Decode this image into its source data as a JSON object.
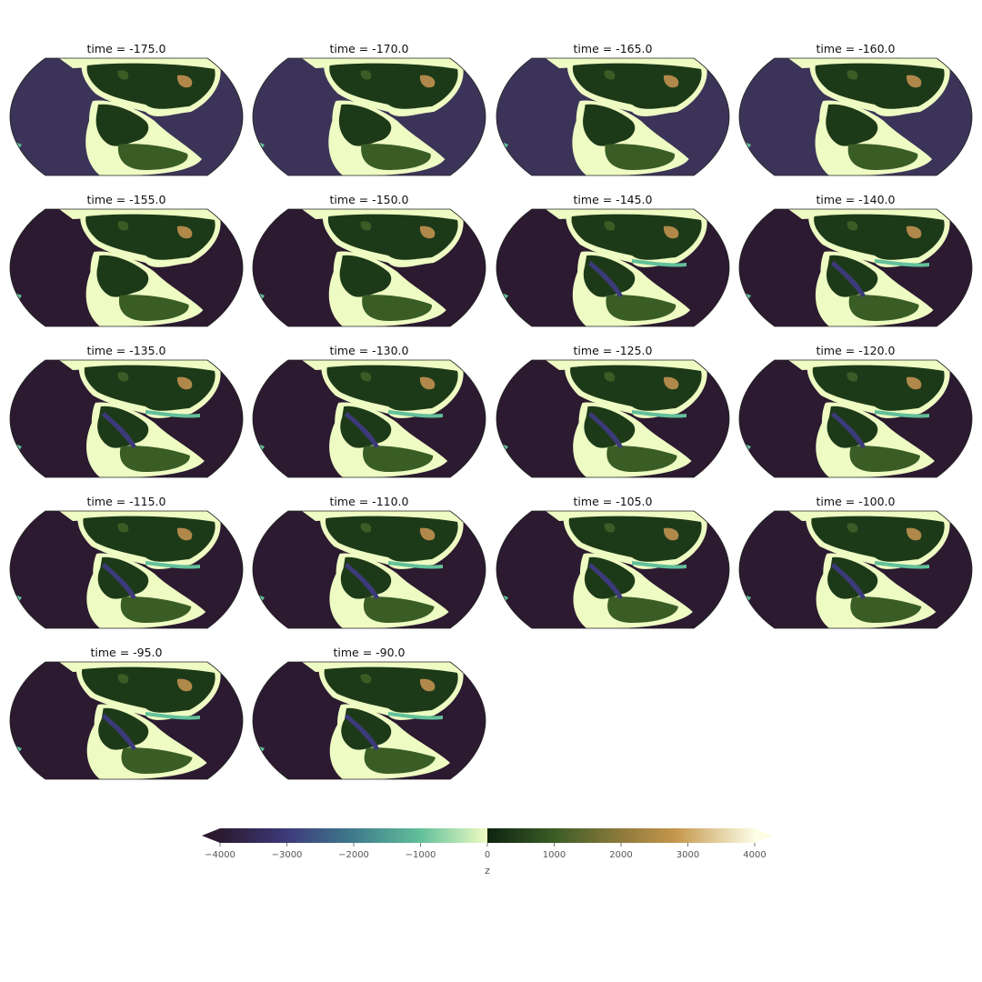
{
  "chart_data": {
    "type": "map-small-multiples",
    "projection": "Robinson",
    "panel_title_prefix": "time = ",
    "panels": [
      {
        "time": -175.0,
        "title": "time = -175.0"
      },
      {
        "time": -170.0,
        "title": "time = -170.0"
      },
      {
        "time": -165.0,
        "title": "time = -165.0"
      },
      {
        "time": -160.0,
        "title": "time = -160.0"
      },
      {
        "time": -155.0,
        "title": "time = -155.0"
      },
      {
        "time": -150.0,
        "title": "time = -150.0"
      },
      {
        "time": -145.0,
        "title": "time = -145.0"
      },
      {
        "time": -140.0,
        "title": "time = -140.0"
      },
      {
        "time": -135.0,
        "title": "time = -135.0"
      },
      {
        "time": -130.0,
        "title": "time = -130.0"
      },
      {
        "time": -125.0,
        "title": "time = -125.0"
      },
      {
        "time": -120.0,
        "title": "time = -120.0"
      },
      {
        "time": -115.0,
        "title": "time = -115.0"
      },
      {
        "time": -110.0,
        "title": "time = -110.0"
      },
      {
        "time": -105.0,
        "title": "time = -105.0"
      },
      {
        "time": -100.0,
        "title": "time = -100.0"
      },
      {
        "time": -95.0,
        "title": "time = -95.0"
      },
      {
        "time": -90.0,
        "title": "time = -90.0"
      }
    ],
    "colorbar": {
      "label": "z",
      "vmin": -4000,
      "vmax": 4000,
      "extend": "both",
      "ticks": [
        -4000,
        -3000,
        -2000,
        -1000,
        0,
        1000,
        2000,
        3000,
        4000
      ],
      "tick_labels": [
        "−4000",
        "−3000",
        "−2000",
        "−1000",
        "0",
        "1000",
        "2000",
        "3000",
        "4000"
      ],
      "colormap_stops": [
        {
          "value": -4000,
          "color": "#2b1a30"
        },
        {
          "value": -3000,
          "color": "#3d3a7a"
        },
        {
          "value": -2000,
          "color": "#3f7b8c"
        },
        {
          "value": -1000,
          "color": "#62c09a"
        },
        {
          "value": -1,
          "color": "#eefbc3"
        },
        {
          "value": 0,
          "color": "#0e2410"
        },
        {
          "value": 1000,
          "color": "#3a5d26"
        },
        {
          "value": 2000,
          "color": "#8e7a3c"
        },
        {
          "value": 2800,
          "color": "#c4964b"
        },
        {
          "value": 4000,
          "color": "#fcfde5"
        }
      ]
    },
    "colors": {
      "ocean_early": "#3c3458",
      "ocean_deep": "#2b1a30",
      "shelf": "#eefbc3",
      "shallow": "#62c09a",
      "mid_depth": "#3d3a7a",
      "land_low": "#1d3a18",
      "land_mid": "#3a5d26",
      "land_high": "#b0884a"
    }
  }
}
